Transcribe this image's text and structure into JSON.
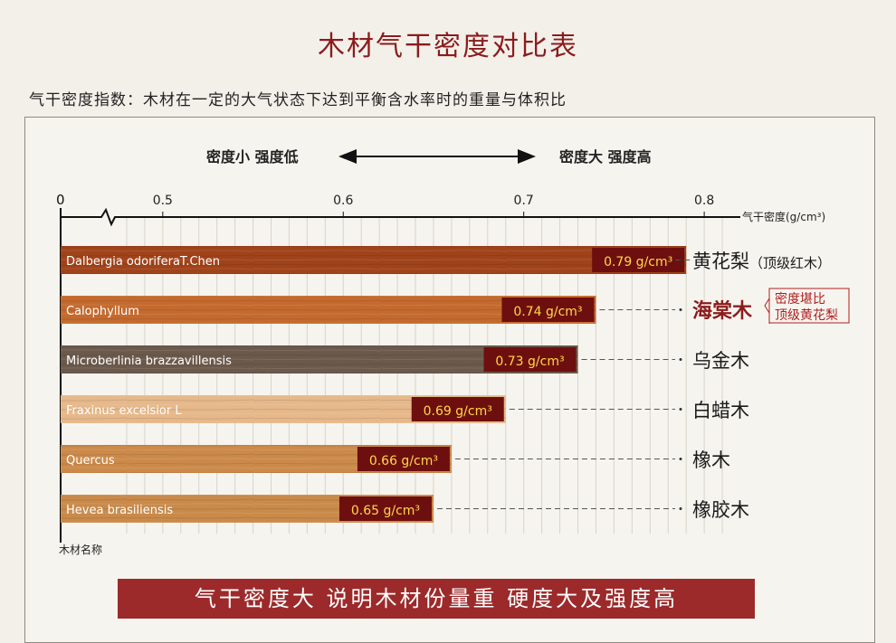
{
  "title": "木材气干密度对比表",
  "subtitle": "气干密度指数：木材在一定的大气状态下达到平衡含水率时的重量与体积比",
  "legend": {
    "left": "密度小 强度低",
    "right": "密度大 强度高"
  },
  "footer": "气干密度大  说明木材份量重  硬度大及强度高",
  "note": {
    "line1": "密度堪比",
    "line2": "顶级黄花梨"
  },
  "colors": {
    "accent": "#8b1c1c",
    "footer_bg": "#9c2a2a",
    "label_bg": "#6e0f0f",
    "label_text": "#ffd84a"
  },
  "chart_data": {
    "type": "bar",
    "orientation": "horizontal",
    "x_axis_label": "气干密度(g/cm³)",
    "y_axis_label": "木材名称",
    "x_origin_label": "0",
    "x_ticks": [
      "0.5",
      "0.6",
      "0.7",
      "0.8"
    ],
    "axis_break": true,
    "grid": true,
    "xlim": [
      0.47,
      0.82
    ],
    "value_unit": "g/cm³",
    "bars": [
      {
        "latin": "Dalbergia odoriferaT.Chen",
        "name": "黄花梨",
        "name_note": "（顶级红木）",
        "value": 0.79,
        "value_label": "0.79 g/cm³",
        "color": "#a0431a",
        "highlight": false
      },
      {
        "latin": "Calophyllum",
        "name": "海棠木",
        "name_note": "",
        "value": 0.74,
        "value_label": "0.74 g/cm³",
        "color": "#c46a2e",
        "highlight": true
      },
      {
        "latin": "Microberlinia brazzavillensis",
        "name": "乌金木",
        "name_note": "",
        "value": 0.73,
        "value_label": "0.73 g/cm³",
        "color": "#6b5a4c",
        "highlight": false
      },
      {
        "latin": "Fraxinus excelsior L",
        "name": "白蜡木",
        "name_note": "",
        "value": 0.69,
        "value_label": "0.69 g/cm³",
        "color": "#e6b88a",
        "highlight": false
      },
      {
        "latin": "Quercus",
        "name": "橡木",
        "name_note": "",
        "value": 0.66,
        "value_label": "0.66 g/cm³",
        "color": "#cc8a4a",
        "highlight": false
      },
      {
        "latin": "Hevea brasiliensis",
        "name": "橡胶木",
        "name_note": "",
        "value": 0.65,
        "value_label": "0.65 g/cm³",
        "color": "#c98a4a",
        "highlight": false
      }
    ]
  }
}
